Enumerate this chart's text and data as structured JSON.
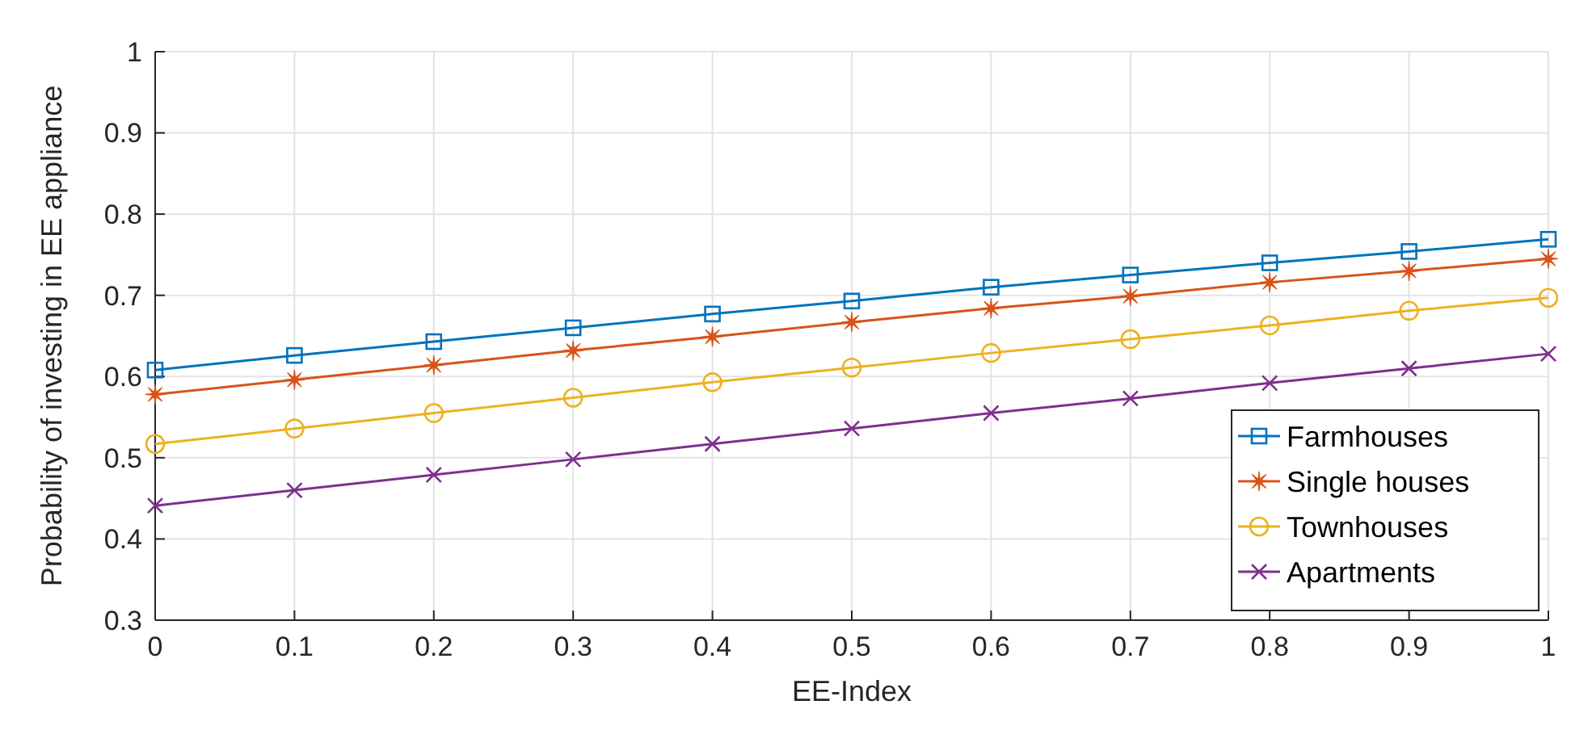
{
  "chart_data": {
    "type": "line",
    "xlabel": "EE-Index",
    "ylabel": "Probability of investing in EE appliance",
    "x": [
      0,
      0.1,
      0.2,
      0.3,
      0.4,
      0.5,
      0.6,
      0.7,
      0.8,
      0.9,
      1
    ],
    "series": [
      {
        "name": "Farmhouses",
        "color": "#0072bd",
        "marker": "square",
        "values": [
          0.608,
          0.626,
          0.643,
          0.66,
          0.677,
          0.693,
          0.71,
          0.725,
          0.74,
          0.754,
          0.769
        ]
      },
      {
        "name": "Single houses",
        "color": "#d95319",
        "marker": "star",
        "values": [
          0.578,
          0.596,
          0.614,
          0.632,
          0.649,
          0.667,
          0.684,
          0.699,
          0.716,
          0.73,
          0.745
        ]
      },
      {
        "name": "Townhouses",
        "color": "#edb120",
        "marker": "circle",
        "values": [
          0.517,
          0.536,
          0.555,
          0.574,
          0.593,
          0.611,
          0.629,
          0.646,
          0.663,
          0.681,
          0.697
        ]
      },
      {
        "name": "Apartments",
        "color": "#7e2f8e",
        "marker": "cross",
        "values": [
          0.441,
          0.46,
          0.479,
          0.498,
          0.517,
          0.536,
          0.555,
          0.573,
          0.592,
          0.61,
          0.628
        ]
      }
    ],
    "xlim": [
      0,
      1
    ],
    "xticks": [
      0,
      0.1,
      0.2,
      0.3,
      0.4,
      0.5,
      0.6,
      0.7,
      0.8,
      0.9,
      1
    ],
    "ylim": [
      0.3,
      1
    ],
    "yticks": [
      0.3,
      0.4,
      0.5,
      0.6,
      0.7,
      0.8,
      0.9,
      1
    ],
    "grid": true,
    "legend": "bottom right",
    "line_style": "solid"
  }
}
